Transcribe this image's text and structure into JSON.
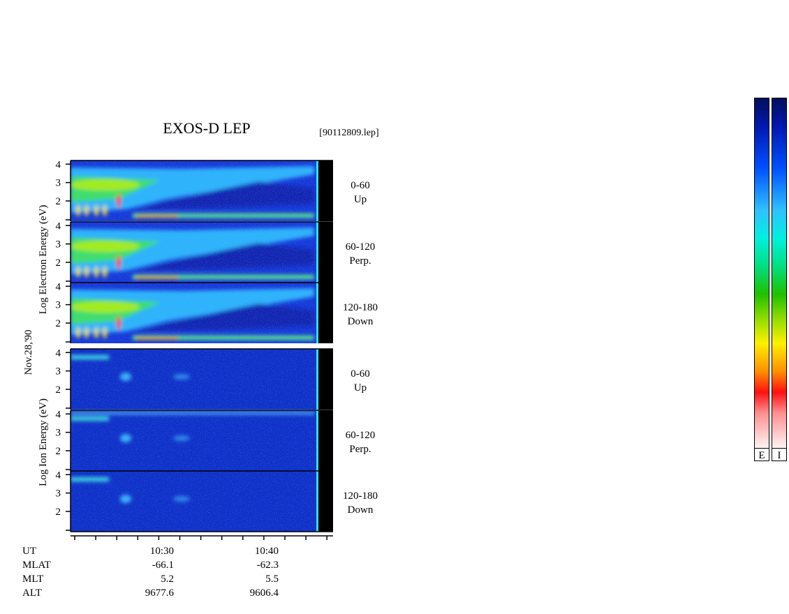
{
  "title": "EXOS-D LEP",
  "file": "[90112809.lep]",
  "y_axis_labels": {
    "date": "Nov.28,'90",
    "electron": "Log  Electron  Energy (eV)",
    "ion": "Log  Ion  Energy (eV)"
  },
  "ylim": [
    0.9,
    4.2
  ],
  "yticks": [
    2,
    3,
    4
  ],
  "panels": [
    {
      "species": "electron",
      "angle": "0-60",
      "direction": "Up"
    },
    {
      "species": "electron",
      "angle": "60-120",
      "direction": "Perp."
    },
    {
      "species": "electron",
      "angle": "120-180",
      "direction": "Down"
    },
    {
      "species": "ion",
      "angle": "0-60",
      "direction": "Up"
    },
    {
      "species": "ion",
      "angle": "60-120",
      "direction": "Perp."
    },
    {
      "species": "ion",
      "angle": "120-180",
      "direction": "Down"
    }
  ],
  "time_axis": {
    "rows": [
      {
        "label": "UT",
        "values": [
          "10:30",
          "10:40"
        ]
      },
      {
        "label": "MLAT",
        "values": [
          -66.1,
          -62.3
        ]
      },
      {
        "label": "MLT",
        "values": [
          5.2,
          5.5
        ]
      },
      {
        "label": "ALT",
        "values": [
          9677.6,
          9606.4
        ]
      }
    ]
  },
  "colorbar_labels": [
    "E",
    "I"
  ]
}
